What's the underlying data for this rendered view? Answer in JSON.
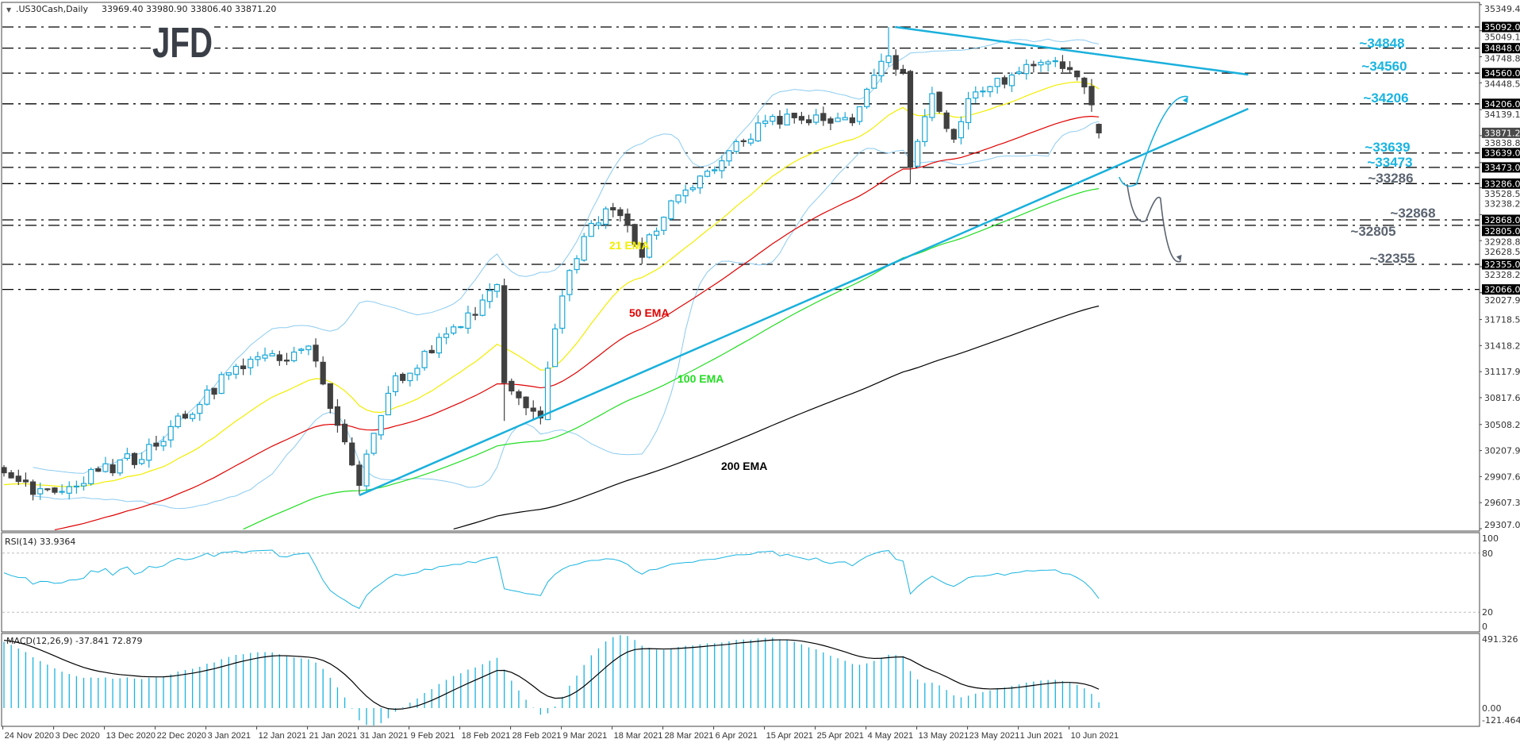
{
  "header": {
    "symbol": ".US30Cash,Daily",
    "ohlc": "33969.40 33980.90 33806.40 33871.20"
  },
  "logo": "JFD",
  "colors": {
    "bull": "#1aa7d6",
    "bear": "#404040",
    "ema21": "#f2ee00",
    "ema50": "#e00000",
    "ema100": "#22dd22",
    "ema200": "#000000",
    "bands": "#8ccbf0",
    "trend": "#19b0dc",
    "bear_path": "#5b6470",
    "level_cyan": "#19b4e0",
    "level_grey": "#5b6470",
    "rsi": "#19b4e0",
    "macd_hist": "#19b4e0"
  },
  "chart_data": {
    "type": "candlestick",
    "title": ".US30Cash,Daily",
    "bars": 152,
    "last_bar": {
      "open": 33969.4,
      "high": 33980.9,
      "low": 33806.4,
      "close": 33871.2
    },
    "close_waypoints": [
      [
        0,
        29875
      ],
      [
        5,
        29710
      ],
      [
        19,
        30158
      ],
      [
        32,
        31165
      ],
      [
        42,
        31385
      ],
      [
        47,
        30323
      ],
      [
        49,
        29875
      ],
      [
        53,
        30936
      ],
      [
        62,
        31605
      ],
      [
        68,
        32053
      ],
      [
        69,
        30936
      ],
      [
        74,
        30607
      ],
      [
        77,
        32053
      ],
      [
        80,
        32722
      ],
      [
        84,
        33005
      ],
      [
        88,
        32502
      ],
      [
        92,
        33060
      ],
      [
        98,
        33454
      ],
      [
        105,
        34012
      ],
      [
        117,
        34012
      ],
      [
        121,
        34640
      ],
      [
        122,
        34680
      ],
      [
        124,
        34506
      ],
      [
        125,
        33509
      ],
      [
        128,
        34287
      ],
      [
        131,
        33838
      ],
      [
        133,
        34287
      ],
      [
        140,
        34570
      ],
      [
        144,
        34735
      ],
      [
        149,
        34451
      ],
      [
        151,
        33871
      ]
    ],
    "ema_seeds": {
      "ema21": 29800,
      "ema50": 29100,
      "ema100": 28300,
      "ema200": 28100
    },
    "ylim": [
      29307.0,
      35349.4
    ],
    "y_ticks": [
      "35349.40",
      "35049.10",
      "34748.80",
      "34448.50",
      "34139.10",
      "33838.80",
      "33528.50",
      "33238.20",
      "32928.80",
      "32628.50",
      "32328.20",
      "32027.90",
      "31718.50",
      "31418.20",
      "31117.90",
      "30817.60",
      "30508.20",
      "30207.90",
      "29907.60",
      "29607.30",
      "29307.00"
    ],
    "current_price": "33871.20",
    "x_labels": [
      "24 Nov 2020",
      "3 Dec 2020",
      "13 Dec 2020",
      "22 Dec 2020",
      "3 Jan 2021",
      "12 Jan 2021",
      "21 Jan 2021",
      "31 Jan 2021",
      "9 Feb 2021",
      "18 Feb 2021",
      "28 Feb 2021",
      "9 Mar 2021",
      "18 Mar 2021",
      "28 Mar 2021",
      "6 Apr 2021",
      "15 Apr 2021",
      "25 Apr 2021",
      "4 May 2021",
      "13 May 2021",
      "23 May 2021",
      "1 Jun 2021",
      "10 Jun 2021"
    ],
    "x_label_every_bars": 7,
    "levels": [
      {
        "price": 35092,
        "box": "35092.00",
        "label": ""
      },
      {
        "price": 34848,
        "box": "34848.00",
        "label": "~34848",
        "tone": "cyan"
      },
      {
        "price": 34560,
        "box": "34560.00",
        "label": "~34560",
        "tone": "cyan"
      },
      {
        "price": 34206,
        "box": "34206.00",
        "label": "~34206",
        "tone": "cyan"
      },
      {
        "price": 33639,
        "box": "33639.00",
        "label": "~33639",
        "tone": "cyan"
      },
      {
        "price": 33473,
        "box": "33473.00",
        "label": "~33473",
        "tone": "cyan"
      },
      {
        "price": 33286,
        "box": "33286.00",
        "label": "~33286",
        "tone": "grey"
      },
      {
        "price": 32868,
        "box": "32868.00",
        "label": "~32868",
        "tone": "grey"
      },
      {
        "price": 32805,
        "box": "32805.00",
        "label": "~32805",
        "tone": "grey"
      },
      {
        "price": 32355,
        "box": "32355.00",
        "label": "~32355",
        "tone": "grey"
      },
      {
        "price": 32066,
        "box": "32066.00",
        "label": ""
      }
    ],
    "ema_labels": {
      "ema21": "21 EMA",
      "ema50": "50 EMA",
      "ema100": "100 EMA",
      "ema200": "200 EMA"
    },
    "trendlines": {
      "uptrend": [
        [
          49,
          29692
        ],
        [
          171.6,
          34149
        ]
      ],
      "downtrend": [
        [
          122.9,
          35092
        ],
        [
          171.6,
          34543
        ]
      ]
    },
    "scenario_paths": {
      "bullish": [
        [
          153.8,
          33362
        ],
        [
          156.2,
          33280
        ],
        [
          163.3,
          34287
        ]
      ],
      "bearish": [
        [
          154.9,
          33280
        ],
        [
          157.5,
          32859
        ],
        [
          159.5,
          33115
        ],
        [
          162.3,
          32392
        ]
      ]
    },
    "rsi": {
      "label": "RSI(14) 33.9364",
      "levels": [
        "100",
        "80",
        "20",
        "0"
      ],
      "seed_gain": 60,
      "seed_loss": 40
    },
    "macd": {
      "label": "MACD(12,26,9) -37.841 72.879",
      "ticks": [
        "491.326",
        "0.00",
        "-121.464"
      ],
      "ylim": [
        -121.464,
        491.326
      ],
      "seed_ema12": 29700,
      "seed_ema26": 29250,
      "seed_signal": 450
    }
  }
}
